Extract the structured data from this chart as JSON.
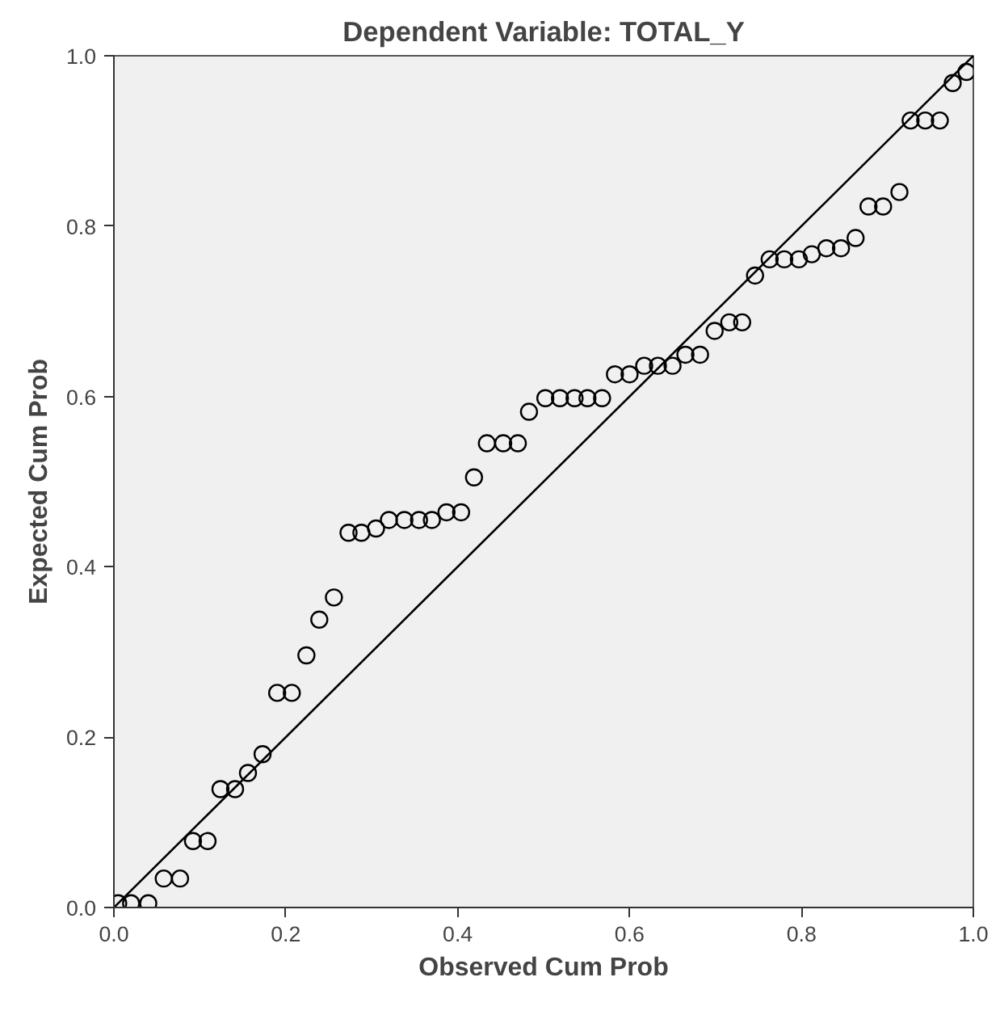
{
  "chart_data": {
    "type": "scatter",
    "title": "Dependent Variable: TOTAL_Y",
    "xlabel": "Observed Cum Prob",
    "ylabel": "Expected Cum Prob",
    "xlim": [
      0,
      1
    ],
    "ylim": [
      0,
      1
    ],
    "xticks": [
      {
        "value": 0,
        "label": "0.0"
      },
      {
        "value": 0.2,
        "label": "0.2"
      },
      {
        "value": 0.4,
        "label": "0.4"
      },
      {
        "value": 0.6,
        "label": "0.6"
      },
      {
        "value": 0.8,
        "label": "0.8"
      },
      {
        "value": 1,
        "label": "1.0"
      }
    ],
    "yticks": [
      {
        "value": 0,
        "label": "0.0"
      },
      {
        "value": 0.2,
        "label": "0.2"
      },
      {
        "value": 0.4,
        "label": "0.4"
      },
      {
        "value": 0.6,
        "label": "0.6"
      },
      {
        "value": 0.8,
        "label": "0.8"
      },
      {
        "value": 1,
        "label": "1.0"
      }
    ],
    "grid": false,
    "series": [
      {
        "marker": "circle",
        "color": "#000000",
        "x": [
          0.005,
          0.02,
          0.04,
          0.058,
          0.077,
          0.092,
          0.109,
          0.124,
          0.141,
          0.156,
          0.173,
          0.19,
          0.207,
          0.224,
          0.239,
          0.256,
          0.273,
          0.288,
          0.305,
          0.32,
          0.338,
          0.355,
          0.37,
          0.387,
          0.404,
          0.419,
          0.434,
          0.453,
          0.47,
          0.483,
          0.502,
          0.519,
          0.536,
          0.551,
          0.568,
          0.583,
          0.6,
          0.617,
          0.633,
          0.65,
          0.665,
          0.682,
          0.699,
          0.716,
          0.731,
          0.746,
          0.763,
          0.78,
          0.797,
          0.812,
          0.829,
          0.846,
          0.863,
          0.878,
          0.895,
          0.914,
          0.927,
          0.944,
          0.961,
          0.976,
          0.992
        ],
        "values": [
          0.005,
          0.005,
          0.005,
          0.034,
          0.034,
          0.078,
          0.078,
          0.139,
          0.139,
          0.158,
          0.18,
          0.252,
          0.252,
          0.296,
          0.338,
          0.364,
          0.44,
          0.44,
          0.445,
          0.455,
          0.455,
          0.455,
          0.455,
          0.464,
          0.464,
          0.505,
          0.545,
          0.545,
          0.545,
          0.582,
          0.598,
          0.598,
          0.598,
          0.598,
          0.598,
          0.626,
          0.626,
          0.636,
          0.636,
          0.636,
          0.649,
          0.649,
          0.677,
          0.687,
          0.687,
          0.742,
          0.761,
          0.761,
          0.761,
          0.767,
          0.774,
          0.774,
          0.786,
          0.823,
          0.823,
          0.84,
          0.924,
          0.924,
          0.924,
          0.968,
          0.981
        ]
      },
      {
        "type": "line",
        "color": "#000000",
        "x": [
          0,
          1
        ],
        "values": [
          0,
          1
        ]
      }
    ]
  }
}
